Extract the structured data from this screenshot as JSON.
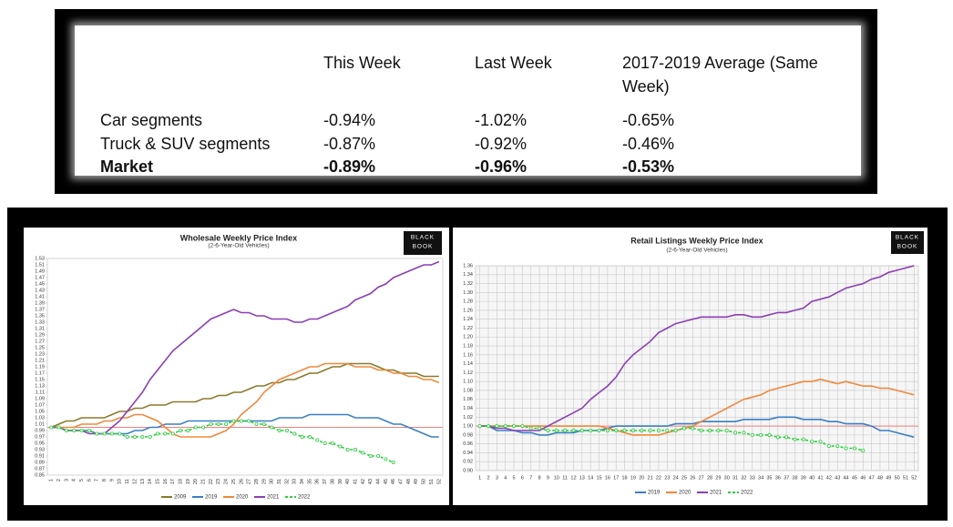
{
  "table": {
    "columns": [
      "This Week",
      "Last Week",
      "2017-2019 Average (Same Week)"
    ],
    "rows": [
      {
        "label": "Car segments",
        "cells": [
          "-0.94%",
          "-1.02%",
          "-0.65%"
        ]
      },
      {
        "label": "Truck & SUV segments",
        "cells": [
          "-0.87%",
          "-0.92%",
          "-0.46%"
        ]
      },
      {
        "label": "Market",
        "cells": [
          "-0.89%",
          "-0.96%",
          "-0.53%"
        ],
        "bold": true
      }
    ]
  },
  "chart_data": [
    {
      "type": "line",
      "title": "Wholesale Weekly Price Index",
      "subtitle": "(2-6-Year-Old Vehicles)",
      "logo": [
        "BLACK",
        "BOOK"
      ],
      "grid": false,
      "hline": {
        "value": 1.0,
        "color": "#f08080"
      },
      "categories": [
        "1",
        "2",
        "3",
        "4",
        "5",
        "6",
        "7",
        "8",
        "9",
        "10",
        "11",
        "12",
        "13",
        "14",
        "15",
        "16",
        "17",
        "18",
        "19",
        "20",
        "21",
        "22",
        "23",
        "24",
        "25",
        "26",
        "27",
        "28",
        "29",
        "30",
        "31",
        "32",
        "33",
        "34",
        "35",
        "36",
        "37",
        "38",
        "39",
        "40",
        "41",
        "42",
        "43",
        "44",
        "45",
        "46",
        "47",
        "48",
        "49",
        "50",
        "51",
        "52"
      ],
      "ylim": [
        0.85,
        1.53
      ],
      "yticks": [
        0.85,
        0.87,
        0.89,
        0.91,
        0.93,
        0.95,
        0.97,
        0.99,
        1.01,
        1.03,
        1.05,
        1.07,
        1.09,
        1.11,
        1.13,
        1.15,
        1.17,
        1.19,
        1.21,
        1.23,
        1.25,
        1.27,
        1.29,
        1.31,
        1.33,
        1.35,
        1.37,
        1.39,
        1.41,
        1.43,
        1.45,
        1.47,
        1.49,
        1.51,
        1.53
      ],
      "series": [
        {
          "name": "2009",
          "color": "#8b7a2b",
          "values": [
            1.0,
            1.01,
            1.02,
            1.02,
            1.03,
            1.03,
            1.03,
            1.03,
            1.04,
            1.05,
            1.05,
            1.06,
            1.06,
            1.07,
            1.07,
            1.07,
            1.08,
            1.08,
            1.08,
            1.08,
            1.09,
            1.09,
            1.1,
            1.1,
            1.11,
            1.11,
            1.12,
            1.13,
            1.13,
            1.14,
            1.14,
            1.15,
            1.15,
            1.16,
            1.17,
            1.17,
            1.18,
            1.19,
            1.19,
            1.2,
            1.2,
            1.2,
            1.2,
            1.19,
            1.18,
            1.18,
            1.17,
            1.17,
            1.17,
            1.16,
            1.16,
            1.16
          ]
        },
        {
          "name": "2019",
          "color": "#3a7fc4",
          "values": [
            1.0,
            1.0,
            0.99,
            0.99,
            0.99,
            0.99,
            0.98,
            0.98,
            0.98,
            0.98,
            0.98,
            0.99,
            0.99,
            1.0,
            1.0,
            1.01,
            1.01,
            1.01,
            1.02,
            1.02,
            1.02,
            1.02,
            1.02,
            1.02,
            1.02,
            1.02,
            1.02,
            1.02,
            1.02,
            1.02,
            1.03,
            1.03,
            1.03,
            1.03,
            1.04,
            1.04,
            1.04,
            1.04,
            1.04,
            1.04,
            1.03,
            1.03,
            1.03,
            1.03,
            1.02,
            1.01,
            1.01,
            1.0,
            0.99,
            0.98,
            0.97,
            0.97
          ]
        },
        {
          "name": "2020",
          "color": "#f0883a",
          "values": [
            1.0,
            1.0,
            1.0,
            1.0,
            1.01,
            1.01,
            1.01,
            1.02,
            1.02,
            1.03,
            1.03,
            1.04,
            1.04,
            1.03,
            1.02,
            1.0,
            0.98,
            0.97,
            0.97,
            0.97,
            0.97,
            0.97,
            0.98,
            0.99,
            1.01,
            1.04,
            1.06,
            1.08,
            1.11,
            1.13,
            1.15,
            1.16,
            1.17,
            1.18,
            1.19,
            1.19,
            1.2,
            1.2,
            1.2,
            1.2,
            1.19,
            1.19,
            1.19,
            1.18,
            1.18,
            1.17,
            1.17,
            1.16,
            1.16,
            1.15,
            1.15,
            1.14
          ]
        },
        {
          "name": "2021",
          "color": "#8b3fb5",
          "values": [
            1.0,
            1.0,
            0.99,
            0.99,
            0.99,
            0.98,
            0.98,
            0.98,
            1.0,
            1.02,
            1.05,
            1.08,
            1.11,
            1.15,
            1.18,
            1.21,
            1.24,
            1.26,
            1.28,
            1.3,
            1.32,
            1.34,
            1.35,
            1.36,
            1.37,
            1.36,
            1.36,
            1.35,
            1.35,
            1.34,
            1.34,
            1.34,
            1.33,
            1.33,
            1.34,
            1.34,
            1.35,
            1.36,
            1.37,
            1.38,
            1.4,
            1.41,
            1.42,
            1.44,
            1.45,
            1.47,
            1.48,
            1.49,
            1.5,
            1.51,
            1.51,
            1.52
          ]
        },
        {
          "name": "2022",
          "color": "#2ecc40",
          "dash": true,
          "marker": "circle",
          "values": [
            1.0,
            1.0,
            0.99,
            0.99,
            0.99,
            0.99,
            0.98,
            0.98,
            0.98,
            0.98,
            0.97,
            0.97,
            0.97,
            0.97,
            0.98,
            0.98,
            0.98,
            0.99,
            0.99,
            1.0,
            1.0,
            1.01,
            1.01,
            1.01,
            1.02,
            1.02,
            1.02,
            1.01,
            1.01,
            1.0,
            0.99,
            0.99,
            0.98,
            0.97,
            0.97,
            0.96,
            0.95,
            0.95,
            0.94,
            0.93,
            0.93,
            0.92,
            0.91,
            0.91,
            0.9,
            0.89,
            null,
            null,
            null,
            null,
            null,
            null
          ]
        }
      ]
    },
    {
      "type": "line",
      "title": "Retail Listings Weekly Price Index",
      "subtitle": "(2-6-Year-Old Vehicles)",
      "logo": [
        "BLACK",
        "BOOK"
      ],
      "grid": true,
      "hline": {
        "value": 1.0,
        "color": "#f08080"
      },
      "categories": [
        "1",
        "2",
        "3",
        "4",
        "5",
        "6",
        "7",
        "8",
        "9",
        "10",
        "11",
        "12",
        "13",
        "14",
        "15",
        "16",
        "17",
        "18",
        "19",
        "20",
        "21",
        "22",
        "23",
        "24",
        "25",
        "26",
        "27",
        "28",
        "29",
        "30",
        "31",
        "32",
        "33",
        "34",
        "35",
        "36",
        "37",
        "38",
        "39",
        "40",
        "41",
        "42",
        "43",
        "44",
        "45",
        "46",
        "47",
        "48",
        "49",
        "50",
        "51",
        "52"
      ],
      "ylim": [
        0.9,
        1.36
      ],
      "yticks": [
        {
          "value": 0.9,
          "label": "0.90"
        },
        0.92,
        0.94,
        0.96,
        0.98,
        {
          "value": 1.0,
          "label": "1.00"
        },
        1.02,
        1.04,
        1.06,
        1.08,
        {
          "value": 1.1,
          "label": "1.10"
        },
        1.12,
        1.14,
        1.16,
        1.18,
        {
          "value": 1.2,
          "label": "1.20"
        },
        1.22,
        1.24,
        1.26,
        1.28,
        {
          "value": 1.3,
          "label": "1.30"
        },
        1.32,
        1.34,
        1.36
      ],
      "series": [
        {
          "name": "2019",
          "color": "#3a7fc4",
          "values": [
            1.0,
            1.0,
            0.99,
            0.99,
            0.99,
            0.985,
            0.985,
            0.98,
            0.98,
            0.985,
            0.985,
            0.985,
            0.99,
            0.99,
            0.99,
            0.995,
            1.0,
            1.0,
            1.0,
            1.0,
            1.0,
            1.0,
            1.0,
            1.005,
            1.005,
            1.005,
            1.01,
            1.01,
            1.01,
            1.01,
            1.01,
            1.015,
            1.015,
            1.015,
            1.015,
            1.02,
            1.02,
            1.02,
            1.015,
            1.015,
            1.015,
            1.01,
            1.01,
            1.005,
            1.005,
            1.005,
            1.0,
            0.99,
            0.99,
            0.985,
            0.98,
            0.975
          ]
        },
        {
          "name": "2020",
          "color": "#f0883a",
          "values": [
            1.0,
            1.0,
            1.0,
            1.0,
            1.0,
            1.0,
            1.0,
            1.0,
            1.0,
            1.0,
            1.0,
            1.0,
            1.0,
            1.0,
            1.0,
            0.995,
            0.99,
            0.985,
            0.98,
            0.98,
            0.98,
            0.98,
            0.985,
            0.99,
            0.995,
            1.0,
            1.01,
            1.02,
            1.03,
            1.04,
            1.05,
            1.06,
            1.065,
            1.07,
            1.08,
            1.085,
            1.09,
            1.095,
            1.1,
            1.1,
            1.105,
            1.1,
            1.095,
            1.1,
            1.095,
            1.09,
            1.09,
            1.085,
            1.085,
            1.08,
            1.075,
            1.07
          ]
        },
        {
          "name": "2021",
          "color": "#8b3fb5",
          "values": [
            1.0,
            1.0,
            0.995,
            0.995,
            0.99,
            0.99,
            0.99,
            0.99,
            1.0,
            1.01,
            1.02,
            1.03,
            1.04,
            1.06,
            1.075,
            1.09,
            1.11,
            1.14,
            1.16,
            1.175,
            1.19,
            1.21,
            1.22,
            1.23,
            1.235,
            1.24,
            1.245,
            1.245,
            1.245,
            1.245,
            1.25,
            1.25,
            1.245,
            1.245,
            1.25,
            1.255,
            1.255,
            1.26,
            1.265,
            1.28,
            1.285,
            1.29,
            1.3,
            1.31,
            1.315,
            1.32,
            1.33,
            1.335,
            1.345,
            1.35,
            1.355,
            1.36
          ]
        },
        {
          "name": "2022",
          "color": "#2ecc40",
          "dash": true,
          "marker": "circle",
          "values": [
            1.0,
            1.0,
            1.0,
            1.0,
            1.0,
            1.0,
            0.995,
            0.995,
            0.99,
            0.99,
            0.99,
            0.99,
            0.99,
            0.99,
            0.99,
            0.99,
            0.99,
            0.99,
            0.99,
            0.99,
            0.99,
            0.99,
            0.99,
            0.99,
            0.995,
            0.995,
            0.99,
            0.99,
            0.99,
            0.99,
            0.985,
            0.985,
            0.98,
            0.98,
            0.98,
            0.975,
            0.975,
            0.97,
            0.97,
            0.965,
            0.965,
            0.955,
            0.955,
            0.95,
            0.95,
            0.945,
            null,
            null,
            null,
            null,
            null,
            null
          ]
        }
      ]
    }
  ]
}
